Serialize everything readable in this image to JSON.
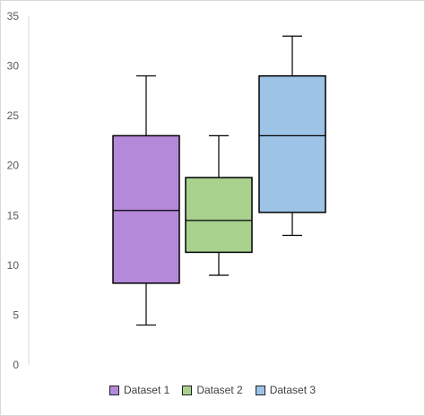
{
  "chart_data": {
    "type": "box",
    "title": "",
    "xlabel": "",
    "ylabel": "",
    "ylim": [
      0,
      35
    ],
    "yticks": [
      0,
      5,
      10,
      15,
      20,
      25,
      30,
      35
    ],
    "grid": false,
    "legend_position": "bottom",
    "series": [
      {
        "name": "Dataset 1",
        "color": "#b589d9",
        "min": 4,
        "q1": 8.2,
        "median": 15.5,
        "q3": 23,
        "max": 29
      },
      {
        "name": "Dataset 2",
        "color": "#a9d18e",
        "min": 9,
        "q1": 11.3,
        "median": 14.5,
        "q3": 18.8,
        "max": 23
      },
      {
        "name": "Dataset 3",
        "color": "#9dc3e6",
        "min": 13,
        "q1": 15.3,
        "median": 23,
        "q3": 29,
        "max": 33
      }
    ]
  }
}
